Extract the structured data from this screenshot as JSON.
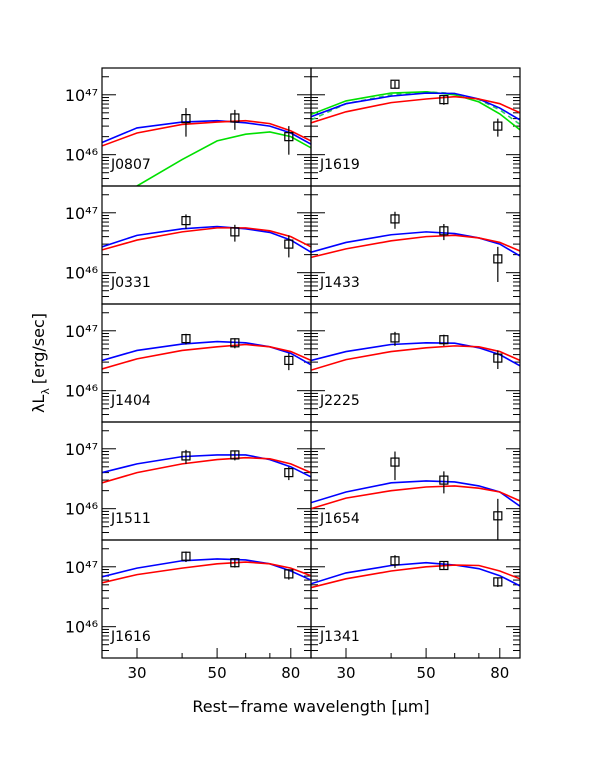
{
  "chart_data": {
    "type": "line",
    "x_label": "Rest−frame wavelength [μm]",
    "y_label": "λL",
    "y_label_sub": "λ",
    "y_label_unit": "[erg/sec]",
    "xscale": "log",
    "yscale": "log",
    "xlim": [
      24,
      91
    ],
    "ylim": [
      3e+45,
      2.8e+47
    ],
    "xticks": [
      30,
      50,
      80
    ],
    "xminor_ticks": [
      40,
      60,
      70
    ],
    "yticks": [
      {
        "value": 1e+46,
        "label": "10⁴⁶"
      },
      {
        "value": 1e+47,
        "label": "10⁴⁷"
      }
    ],
    "yminor_ticks": [
      4e+45,
      5e+45,
      6e+45,
      7e+45,
      8e+45,
      9e+45,
      2e+46,
      3e+46,
      4e+46,
      5e+46,
      6e+46,
      7e+46,
      8e+46,
      9e+46,
      2e+47
    ],
    "x": [
      24,
      30,
      40,
      50,
      60,
      70,
      80,
      91
    ],
    "point_x": [
      41,
      56,
      79
    ],
    "panels": [
      {
        "name": "J0807",
        "points": [
          4e+46,
          4.1e+46,
          2e+46
        ],
        "errors": [
          2e+46,
          1.5e+46,
          1e+46
        ],
        "series": [
          {
            "color": "#0000ff",
            "values": [
              1.6e+46,
              2.8e+46,
              3.5e+46,
              3.7e+46,
              3.4e+46,
              3e+46,
              2.3e+46,
              1.5e+46
            ]
          },
          {
            "color": "#ff0000",
            "values": [
              1.4e+46,
              2.3e+46,
              3.2e+46,
              3.5e+46,
              3.7e+46,
              3.3e+46,
              2.5e+46,
              1.7e+46
            ]
          },
          {
            "color": "#00e000",
            "values": [
              null,
              3e+45,
              8.3e+45,
              1.7e+46,
              2.2e+46,
              2.4e+46,
              2e+46,
              1.3e+46
            ]
          }
        ]
      },
      {
        "name": "J1619",
        "points": [
          1.5e+47,
          8.3e+46,
          3e+46
        ],
        "errors": [
          2e+46,
          1.5e+46,
          1e+46
        ],
        "series": [
          {
            "color": "#33cc66",
            "dashed": true,
            "values": [
              3.8e+46,
              7.1e+46,
              1e+47,
              1.12e+47,
              1.05e+47,
              8.3e+46,
              5.6e+46,
              3.2e+46
            ]
          },
          {
            "color": "#00e000",
            "values": [
              4.7e+46,
              7.9e+46,
              1.07e+47,
              1.12e+47,
              1e+47,
              7.6e+46,
              4.8e+46,
              2.6e+46
            ]
          },
          {
            "color": "#0000ff",
            "values": [
              4.3e+46,
              7.1e+46,
              9.5e+46,
              1.07e+47,
              1.05e+47,
              8.5e+46,
              6e+46,
              3.8e+46
            ]
          },
          {
            "color": "#ff0000",
            "values": [
              3.4e+46,
              5.2e+46,
              7.4e+46,
              8.5e+46,
              9.3e+46,
              8.5e+46,
              7.1e+46,
              5e+46
            ]
          }
        ]
      },
      {
        "name": "J0331",
        "points": [
          7.4e+46,
          4.8e+46,
          3e+46
        ],
        "errors": [
          2e+46,
          1.5e+46,
          1.2e+46
        ],
        "series": [
          {
            "color": "#0000ff",
            "values": [
              2.7e+46,
              4.2e+46,
              5.4e+46,
              5.9e+46,
              5.4e+46,
              4.7e+46,
              3.5e+46,
              2.2e+46
            ]
          },
          {
            "color": "#ff0000",
            "values": [
              2.4e+46,
              3.5e+46,
              4.8e+46,
              5.6e+46,
              5.6e+46,
              5e+46,
              4e+46,
              2.7e+46
            ]
          }
        ]
      },
      {
        "name": "J1433",
        "points": [
          7.9e+46,
          5e+46,
          1.7e+46
        ],
        "errors": [
          2.5e+46,
          1.5e+46,
          1e+46
        ],
        "series": [
          {
            "color": "#0000ff",
            "values": [
              2.2e+46,
              3.2e+46,
              4.3e+46,
              4.8e+46,
              4.5e+46,
              3.8e+46,
              3e+46,
              1.9e+46
            ]
          },
          {
            "color": "#ff0000",
            "values": [
              1.8e+46,
              2.5e+46,
              3.4e+46,
              4e+46,
              4.2e+46,
              3.8e+46,
              3.2e+46,
              2.3e+46
            ]
          }
        ]
      },
      {
        "name": "J1404",
        "points": [
          7.4e+46,
          6.3e+46,
          3.2e+46
        ],
        "errors": [
          1.5e+46,
          1.2e+46,
          1e+46
        ],
        "series": [
          {
            "color": "#0000ff",
            "values": [
              3.2e+46,
              4.7e+46,
              6e+46,
              6.6e+46,
              6.3e+46,
              5.4e+46,
              4.2e+46,
              2.7e+46
            ]
          },
          {
            "color": "#ff0000",
            "values": [
              2.3e+46,
              3.4e+46,
              4.7e+46,
              5.4e+46,
              5.9e+46,
              5.4e+46,
              4.5e+46,
              3.2e+46
            ]
          }
        ]
      },
      {
        "name": "J2225",
        "points": [
          7.6e+46,
          7.1e+46,
          3.5e+46
        ],
        "errors": [
          2e+46,
          1.5e+46,
          1.2e+46
        ],
        "series": [
          {
            "color": "#0000ff",
            "values": [
              3.2e+46,
              4.5e+46,
              5.9e+46,
              6.3e+46,
              6.2e+46,
              5.2e+46,
              4e+46,
              2.6e+46
            ]
          },
          {
            "color": "#ff0000",
            "values": [
              2.2e+46,
              3.3e+46,
              4.5e+46,
              5.2e+46,
              5.6e+46,
              5.4e+46,
              4.5e+46,
              3.2e+46
            ]
          }
        ]
      },
      {
        "name": "J1511",
        "points": [
          7.6e+46,
          7.9e+46,
          4e+46
        ],
        "errors": [
          2e+46,
          1.5e+46,
          1e+46
        ],
        "series": [
          {
            "color": "#0000ff",
            "values": [
              4e+46,
              5.6e+46,
              7.4e+46,
              7.9e+46,
              7.9e+46,
              6.6e+46,
              5e+46,
              3.4e+46
            ]
          },
          {
            "color": "#ff0000",
            "values": [
              2.7e+46,
              4e+46,
              5.6e+46,
              6.6e+46,
              7.1e+46,
              6.8e+46,
              5.6e+46,
              4e+46
            ]
          }
        ]
      },
      {
        "name": "J1654",
        "points": [
          6e+46,
          3e+46,
          7.6e+45
        ],
        "errors": [
          3e+46,
          1.2e+46,
          7e+45
        ],
        "series": [
          {
            "color": "#0000ff",
            "values": [
              1.26e+46,
              1.9e+46,
              2.7e+46,
              2.9e+46,
              2.8e+46,
              2.4e+46,
              1.9e+46,
              1.1e+46
            ]
          },
          {
            "color": "#ff0000",
            "values": [
              1e+46,
              1.5e+46,
              2e+46,
              2.3e+46,
              2.4e+46,
              2.2e+46,
              1.9e+46,
              1.35e+46
            ]
          }
        ]
      },
      {
        "name": "J1616",
        "points": [
          1.5e+47,
          1.17e+47,
          7.6e+46
        ],
        "errors": [
          3e+46,
          2e+46,
          1.5e+46
        ],
        "series": [
          {
            "color": "#0000ff",
            "values": [
              6.8e+46,
              9.5e+46,
              1.26e+47,
              1.35e+47,
              1.3e+47,
              1.12e+47,
              8.5e+46,
              6e+46
            ]
          },
          {
            "color": "#ff0000",
            "values": [
              5.4e+46,
              7.4e+46,
              9.5e+46,
              1.12e+47,
              1.2e+47,
              1.12e+47,
              9.5e+46,
              7.1e+46
            ]
          }
        ]
      },
      {
        "name": "J1341",
        "points": [
          1.26e+47,
          1.05e+47,
          5.6e+46
        ],
        "errors": [
          3e+46,
          1.5e+46,
          1e+46
        ],
        "series": [
          {
            "color": "#0000ff",
            "values": [
              5.2e+46,
              7.9e+46,
              1.05e+47,
              1.17e+47,
              1.07e+47,
              9.3e+46,
              7.1e+46,
              4.8e+46
            ]
          },
          {
            "color": "#ff0000",
            "values": [
              4.5e+46,
              6.3e+46,
              8.5e+46,
              1e+47,
              1.07e+47,
              1.05e+47,
              8.5e+46,
              6.3e+46
            ]
          }
        ]
      }
    ]
  }
}
